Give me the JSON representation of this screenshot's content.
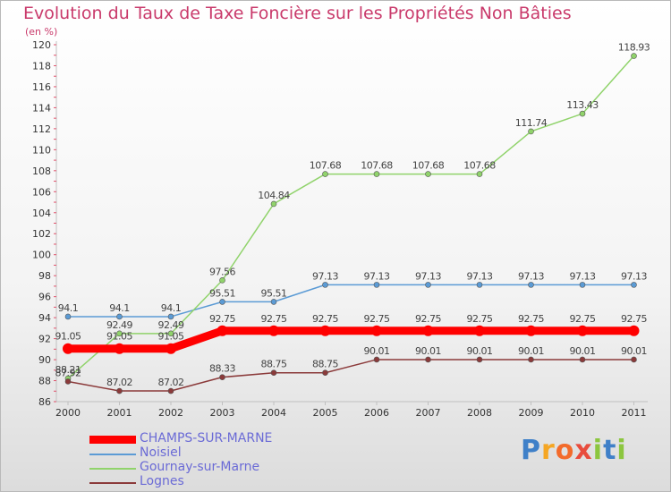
{
  "chart_data": {
    "type": "line",
    "title": "Evolution du Taux de Taxe Foncière sur les Propriétés Non Bâties",
    "subtitle": "(en %)",
    "categories": [
      "2000",
      "2001",
      "2002",
      "2003",
      "2004",
      "2005",
      "2006",
      "2007",
      "2008",
      "2009",
      "2010",
      "2011"
    ],
    "ylim": [
      86,
      120
    ],
    "yticks": [
      86,
      88,
      90,
      92,
      94,
      96,
      98,
      100,
      102,
      104,
      106,
      108,
      110,
      112,
      114,
      116,
      118,
      120
    ],
    "grid": false,
    "legend_position": "bottom-left",
    "series": [
      {
        "name": "CHAMPS-SUR-MARNE",
        "color": "#ff0000",
        "values": [
          91.05,
          91.05,
          91.05,
          92.75,
          92.75,
          92.75,
          92.75,
          92.75,
          92.75,
          92.75,
          92.75,
          92.75
        ]
      },
      {
        "name": "Noisiel",
        "color": "#5b9bd5",
        "values": [
          94.1,
          94.1,
          94.1,
          95.51,
          95.51,
          97.13,
          97.13,
          97.13,
          97.13,
          97.13,
          97.13,
          97.13
        ]
      },
      {
        "name": "Gournay-sur-Marne",
        "color": "#90d36b",
        "values": [
          88.21,
          92.49,
          92.49,
          97.56,
          104.84,
          107.68,
          107.68,
          107.68,
          107.68,
          111.74,
          113.43,
          118.93
        ]
      },
      {
        "name": "Lognes",
        "color": "#8b3a3a",
        "values": [
          87.92,
          87.02,
          87.02,
          88.33,
          88.75,
          88.75,
          90.01,
          90.01,
          90.01,
          90.01,
          90.01,
          90.01
        ]
      }
    ]
  },
  "logo": {
    "text": "Proxiti",
    "letters": [
      "P",
      "r",
      "o",
      "x",
      "i",
      "t",
      "i"
    ]
  }
}
